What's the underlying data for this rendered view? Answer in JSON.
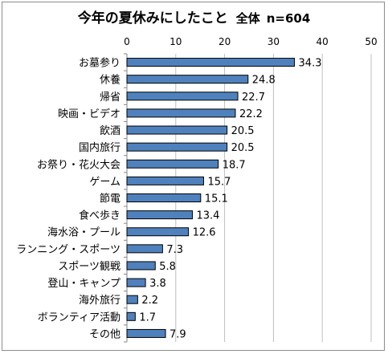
{
  "chart_data": {
    "type": "bar",
    "orientation": "horizontal",
    "title": "今年の夏休みにしたこと",
    "subtitle": "全体",
    "sample": "n=604",
    "categories": [
      "お墓参り",
      "休養",
      "帰省",
      "映画・ビデオ",
      "飲酒",
      "国内旅行",
      "お祭り・花火大会",
      "ゲーム",
      "節電",
      "食べ歩き",
      "海水浴・プール",
      "ランニング・スポーツ",
      "スポーツ観戦",
      "登山・キャンプ",
      "海外旅行",
      "ボランティア活動",
      "その他"
    ],
    "values": [
      34.3,
      24.8,
      22.7,
      22.2,
      20.5,
      20.5,
      18.7,
      15.7,
      15.1,
      13.4,
      12.6,
      7.3,
      5.8,
      3.8,
      2.2,
      1.7,
      7.9
    ],
    "value_labels": [
      "34.3",
      "24.8",
      "22.7",
      "22.2",
      "20.5",
      "20.5",
      "18.7",
      "15.7",
      "15.1",
      "13.4",
      "12.6",
      "7.3",
      "5.8",
      "3.8",
      "2.2",
      "1.7",
      "7.9"
    ],
    "xlim": [
      0,
      50
    ],
    "xticks": [
      "0",
      "10",
      "20",
      "30",
      "40",
      "50"
    ],
    "axis_position": "top",
    "grid": true,
    "legend": "none",
    "colors": {
      "bar_fill": "#4f81bd",
      "bar_stroke": "#000000",
      "grid": "#bfbfbf",
      "axis": "#868686"
    }
  }
}
